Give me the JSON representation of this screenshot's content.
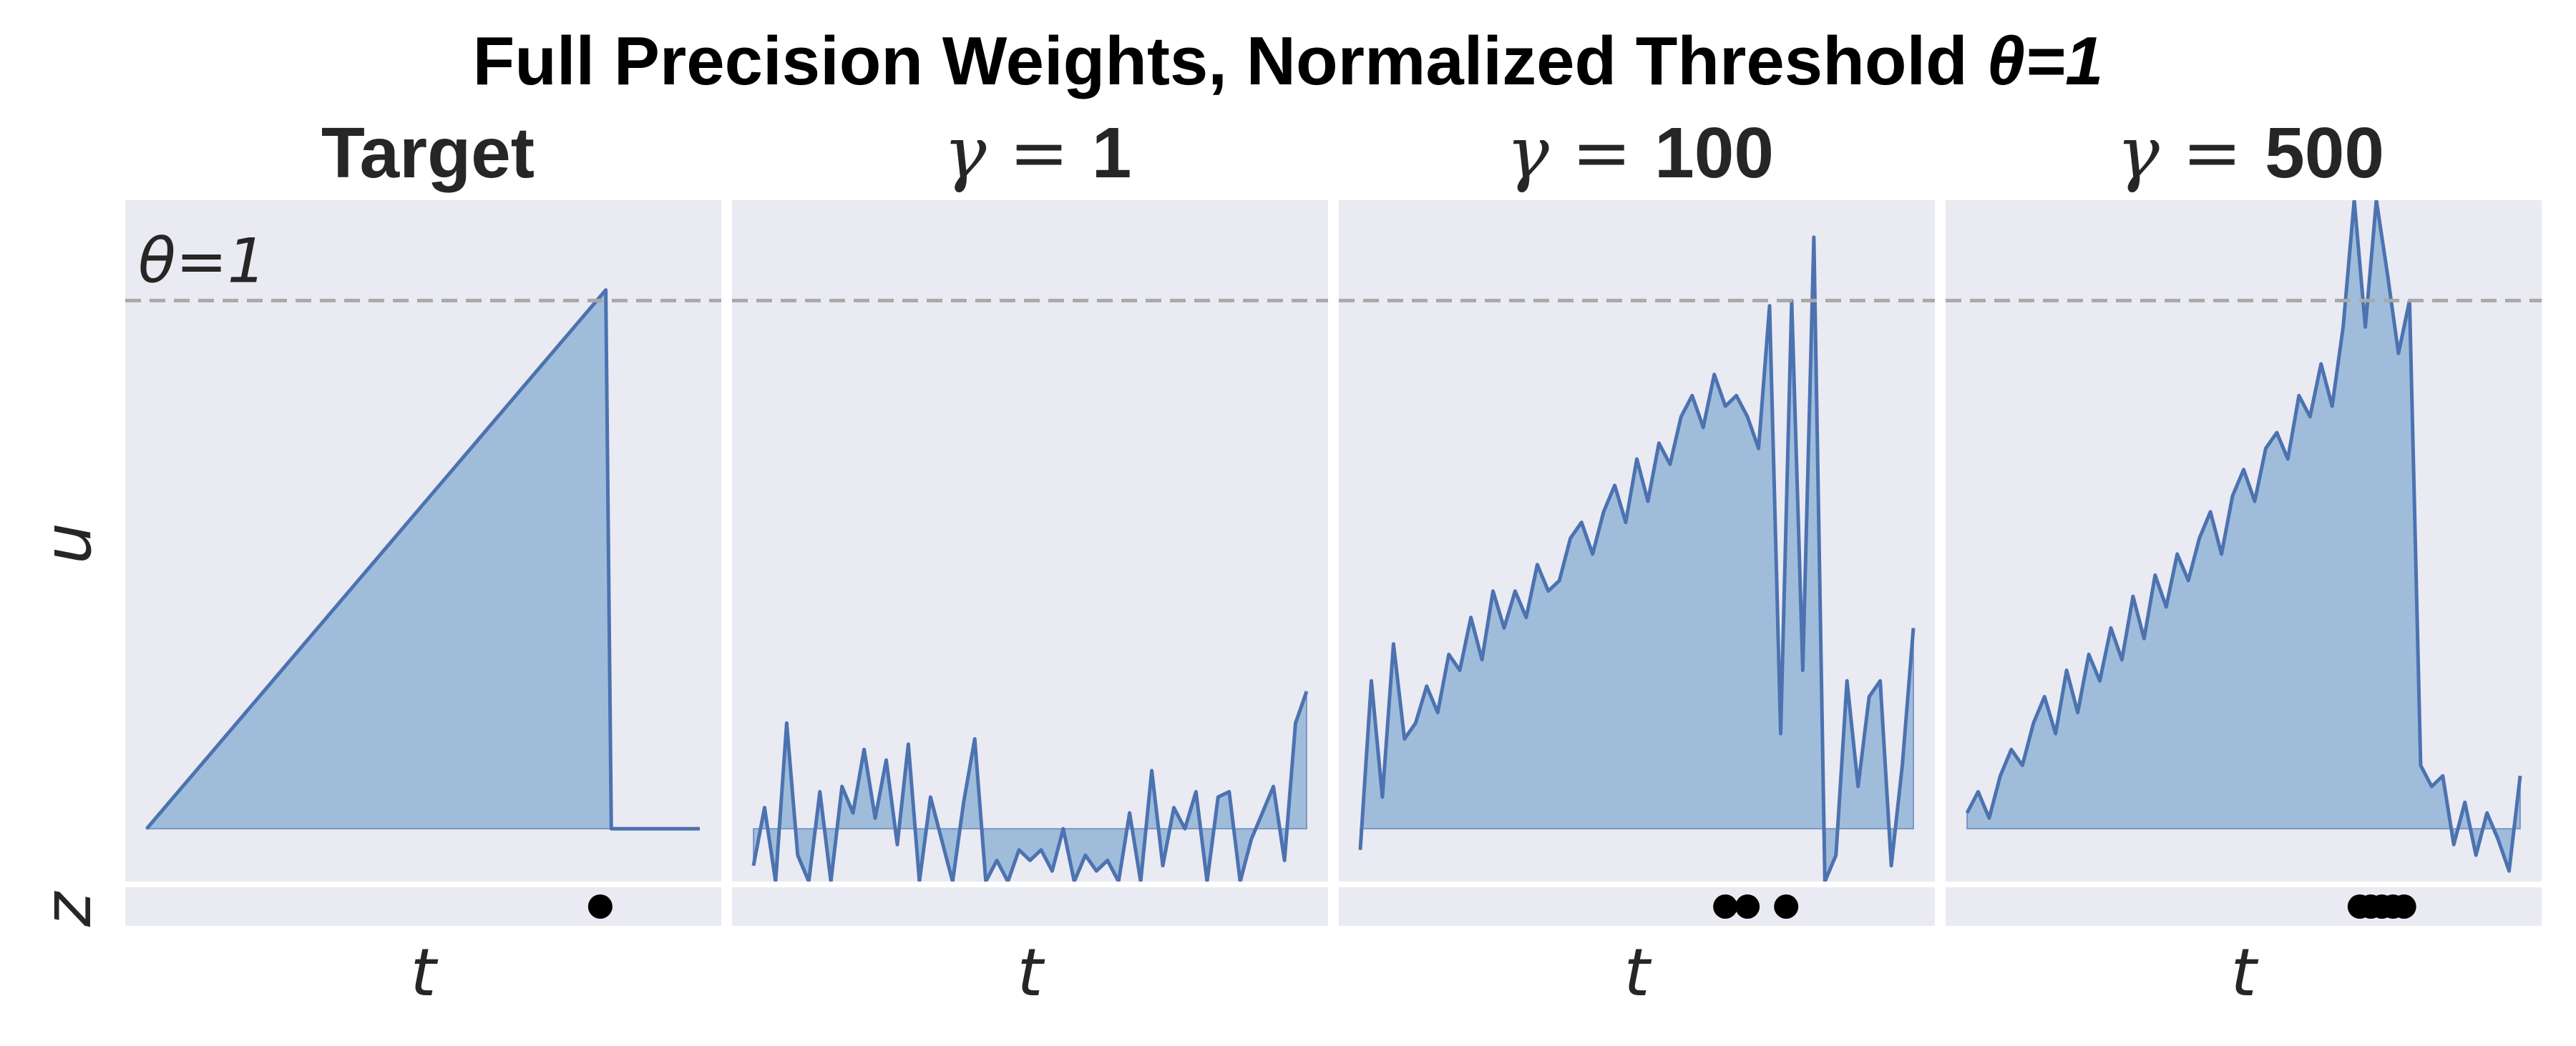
{
  "figure": {
    "title_main": "Full Precision Weights, Normalized Threshold ",
    "title_theta": "θ=1",
    "ylabel_u": "u",
    "ylabel_z": "z",
    "threshold_label": "θ=1",
    "xlabel": "t"
  },
  "colors": {
    "axes_bg": "#eaeaf2",
    "line": "#4c72b0",
    "fill": "#9bbbd9",
    "threshold": "#a9a9a9",
    "spike": "#000000"
  },
  "chart_data": [
    {
      "type": "area",
      "title": "Target",
      "title_prefix": "",
      "title_value": "",
      "xlabel": "t",
      "ylabel": "u",
      "threshold": 1,
      "ylim": [
        -0.1,
        1.19
      ],
      "x_range": [
        0,
        1
      ],
      "x": [
        0.0,
        0.83,
        0.84,
        1.0
      ],
      "u": [
        0.0,
        1.02,
        0.0,
        0.0
      ],
      "spikes": [
        0.82
      ]
    },
    {
      "type": "area",
      "title": "",
      "title_prefix": "γ = ",
      "title_value": "1",
      "xlabel": "t",
      "ylabel": "u",
      "threshold": 1,
      "ylim": [
        -0.1,
        1.19
      ],
      "x_range": [
        0,
        1
      ],
      "x": [
        0.0,
        0.02,
        0.04,
        0.06,
        0.08,
        0.1,
        0.12,
        0.14,
        0.16,
        0.18,
        0.2,
        0.22,
        0.24,
        0.26,
        0.28,
        0.3,
        0.32,
        0.34,
        0.36,
        0.38,
        0.4,
        0.42,
        0.44,
        0.46,
        0.48,
        0.5,
        0.52,
        0.54,
        0.56,
        0.58,
        0.6,
        0.62,
        0.64,
        0.66,
        0.68,
        0.7,
        0.72,
        0.74,
        0.76,
        0.78,
        0.8,
        0.82,
        0.84,
        0.86,
        0.88,
        0.9,
        0.92,
        0.94,
        0.96,
        0.98,
        1.0
      ],
      "u": [
        -0.07,
        0.04,
        -0.1,
        0.2,
        -0.05,
        -0.1,
        0.07,
        -0.1,
        0.08,
        0.03,
        0.15,
        0.02,
        0.13,
        -0.03,
        0.16,
        -0.1,
        0.06,
        -0.02,
        -0.1,
        0.05,
        0.17,
        -0.1,
        -0.06,
        -0.1,
        -0.04,
        -0.06,
        -0.04,
        -0.08,
        0.0,
        -0.1,
        -0.05,
        -0.08,
        -0.06,
        -0.1,
        0.03,
        -0.1,
        0.11,
        -0.07,
        0.04,
        0.0,
        0.07,
        -0.1,
        0.06,
        0.07,
        -0.1,
        -0.02,
        0.03,
        0.08,
        -0.06,
        0.2,
        0.26
      ],
      "spikes": []
    },
    {
      "type": "area",
      "title": "",
      "title_prefix": "γ = ",
      "title_value": "100",
      "xlabel": "t",
      "ylabel": "u",
      "threshold": 1,
      "ylim": [
        -0.1,
        1.19
      ],
      "x_range": [
        0,
        1
      ],
      "x": [
        0.0,
        0.02,
        0.04,
        0.06,
        0.08,
        0.1,
        0.12,
        0.14,
        0.16,
        0.18,
        0.2,
        0.22,
        0.24,
        0.26,
        0.28,
        0.3,
        0.32,
        0.34,
        0.36,
        0.38,
        0.4,
        0.42,
        0.44,
        0.46,
        0.48,
        0.5,
        0.52,
        0.54,
        0.56,
        0.58,
        0.6,
        0.62,
        0.64,
        0.66,
        0.68,
        0.7,
        0.72,
        0.74,
        0.76,
        0.78,
        0.8,
        0.82,
        0.84,
        0.86,
        0.88,
        0.9,
        0.92,
        0.94,
        0.96,
        0.98,
        1.0
      ],
      "u": [
        -0.04,
        0.28,
        0.06,
        0.35,
        0.17,
        0.2,
        0.27,
        0.22,
        0.33,
        0.3,
        0.4,
        0.32,
        0.45,
        0.38,
        0.45,
        0.4,
        0.5,
        0.45,
        0.47,
        0.55,
        0.58,
        0.52,
        0.6,
        0.65,
        0.58,
        0.7,
        0.62,
        0.73,
        0.69,
        0.78,
        0.82,
        0.76,
        0.86,
        0.8,
        0.82,
        0.78,
        0.72,
        0.99,
        0.18,
        1.0,
        0.3,
        1.12,
        -0.1,
        -0.05,
        0.28,
        0.08,
        0.25,
        0.28,
        -0.07,
        0.12,
        0.38
      ],
      "spikes": [
        0.66,
        0.7,
        0.77
      ]
    },
    {
      "type": "area",
      "title": "",
      "title_prefix": "γ = ",
      "title_value": "500",
      "xlabel": "t",
      "ylabel": "u",
      "threshold": 1,
      "ylim": [
        -0.1,
        1.19
      ],
      "x_range": [
        0,
        1
      ],
      "x": [
        0.0,
        0.02,
        0.04,
        0.06,
        0.08,
        0.1,
        0.12,
        0.14,
        0.16,
        0.18,
        0.2,
        0.22,
        0.24,
        0.26,
        0.28,
        0.3,
        0.32,
        0.34,
        0.36,
        0.38,
        0.4,
        0.42,
        0.44,
        0.46,
        0.48,
        0.5,
        0.52,
        0.54,
        0.56,
        0.58,
        0.6,
        0.62,
        0.64,
        0.66,
        0.68,
        0.7,
        0.72,
        0.74,
        0.76,
        0.78,
        0.8,
        0.82,
        0.84,
        0.86,
        0.88,
        0.9,
        0.92,
        0.94,
        0.96,
        0.98,
        1.0
      ],
      "u": [
        0.03,
        0.07,
        0.02,
        0.1,
        0.15,
        0.12,
        0.2,
        0.25,
        0.18,
        0.3,
        0.22,
        0.33,
        0.28,
        0.38,
        0.32,
        0.44,
        0.36,
        0.48,
        0.42,
        0.52,
        0.47,
        0.55,
        0.6,
        0.52,
        0.63,
        0.68,
        0.62,
        0.72,
        0.75,
        0.7,
        0.82,
        0.78,
        0.88,
        0.8,
        0.95,
        1.19,
        0.95,
        1.19,
        1.05,
        0.9,
        1.0,
        0.12,
        0.08,
        0.1,
        -0.03,
        0.05,
        -0.05,
        0.03,
        -0.02,
        -0.08,
        0.1
      ],
      "spikes": [
        0.71,
        0.73,
        0.75,
        0.77,
        0.79
      ]
    }
  ]
}
